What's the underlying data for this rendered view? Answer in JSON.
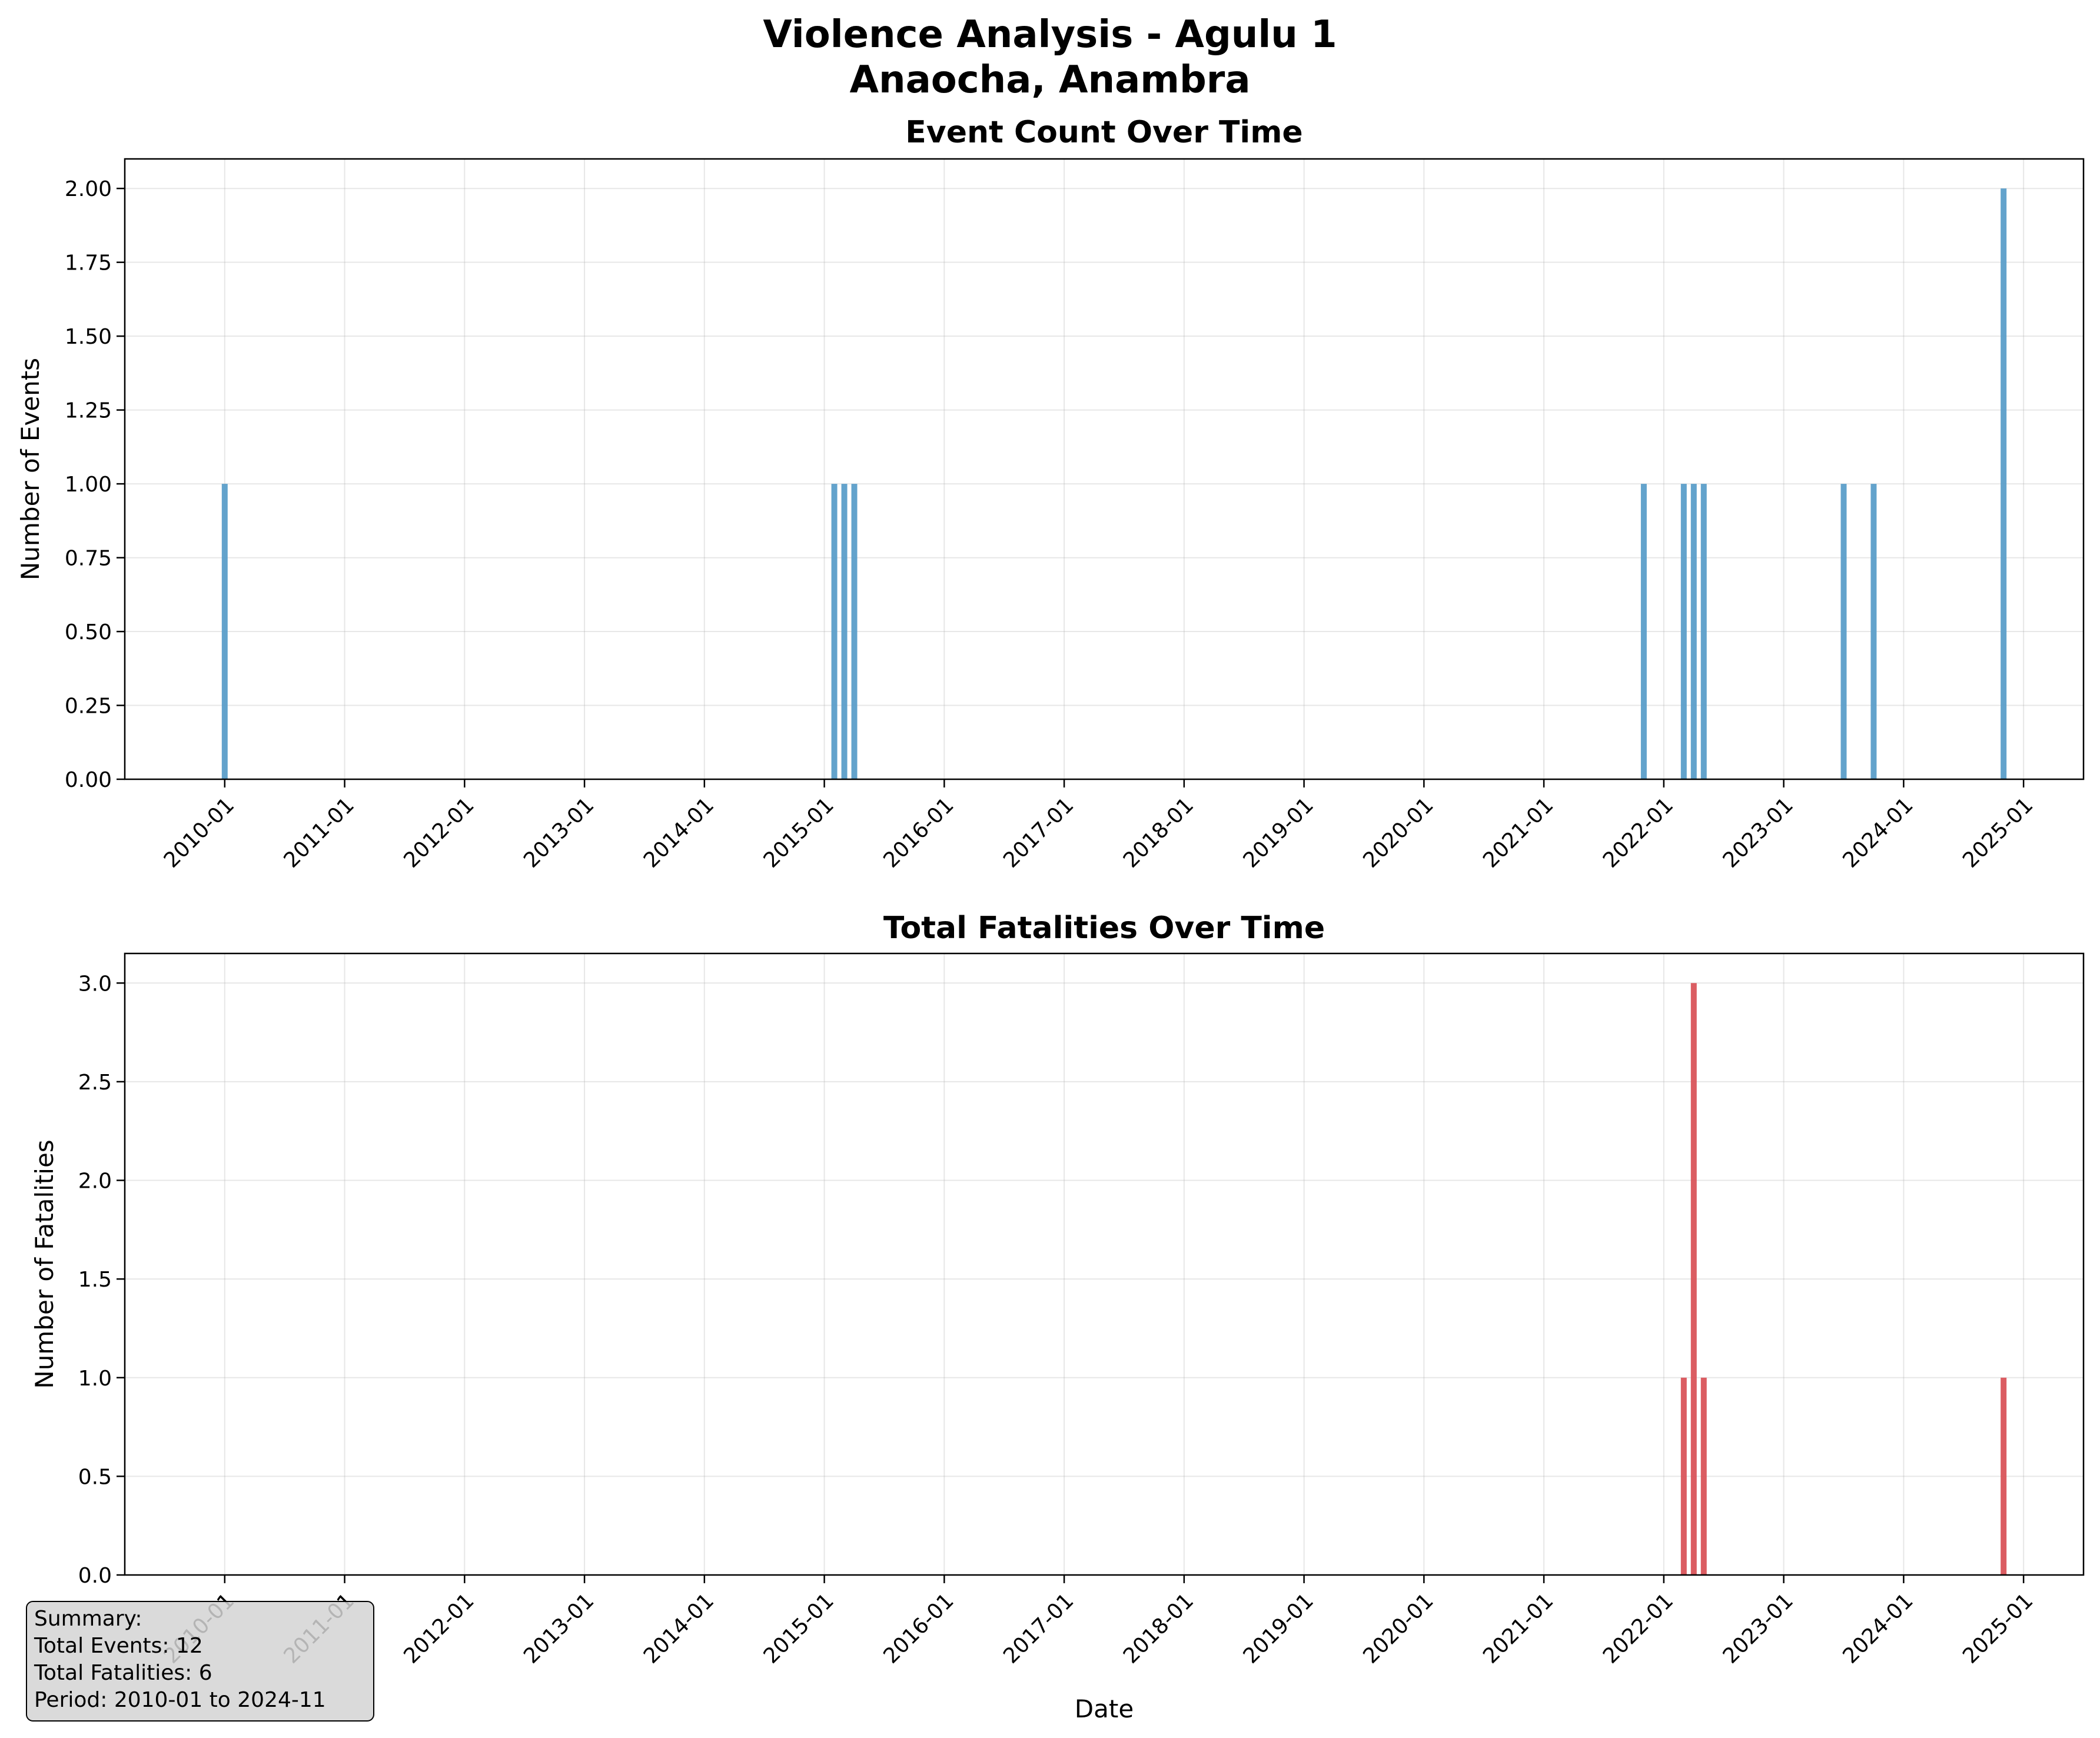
{
  "title_line1": "Violence Analysis - Agulu 1",
  "title_line2": "Anaocha, Anambra",
  "colors": {
    "events": "#5b9ec9",
    "fatalities": "#d9545a"
  },
  "summary": {
    "heading": "Summary:",
    "total_events": "Total Events: 12",
    "total_fatalities": "Total Fatalities: 6",
    "period": "Period: 2010-01 to 2024-11"
  },
  "chart_data": [
    {
      "type": "bar",
      "title": "Event Count Over Time",
      "xlabel": "",
      "ylabel": "Number of Events",
      "ylim": [
        0,
        2.1
      ],
      "xlim": [
        "2009-03",
        "2025-07"
      ],
      "grid": true,
      "x_tick_labels": [
        "2010-01",
        "2011-01",
        "2012-01",
        "2013-01",
        "2014-01",
        "2015-01",
        "2016-01",
        "2017-01",
        "2018-01",
        "2019-01",
        "2020-01",
        "2021-01",
        "2022-01",
        "2023-01",
        "2024-01",
        "2025-01"
      ],
      "y_tick_labels": [
        "0.00",
        "0.25",
        "0.50",
        "0.75",
        "1.00",
        "1.25",
        "1.50",
        "1.75",
        "2.00"
      ],
      "x": [
        "2010-01",
        "2015-02",
        "2015-03",
        "2015-04",
        "2021-11",
        "2022-03",
        "2022-04",
        "2022-05",
        "2023-07",
        "2023-10",
        "2024-11"
      ],
      "values": [
        1,
        1,
        1,
        1,
        1,
        1,
        1,
        1,
        1,
        1,
        2
      ]
    },
    {
      "type": "bar",
      "title": "Total Fatalities Over Time",
      "xlabel": "Date",
      "ylabel": "Number of Fatalities",
      "ylim": [
        0,
        3.15
      ],
      "xlim": [
        "2009-03",
        "2025-07"
      ],
      "grid": true,
      "x_tick_labels": [
        "2010-01",
        "2011-01",
        "2012-01",
        "2013-01",
        "2014-01",
        "2015-01",
        "2016-01",
        "2017-01",
        "2018-01",
        "2019-01",
        "2020-01",
        "2021-01",
        "2022-01",
        "2023-01",
        "2024-01",
        "2025-01"
      ],
      "y_tick_labels": [
        "0.0",
        "0.5",
        "1.0",
        "1.5",
        "2.0",
        "2.5",
        "3.0"
      ],
      "x": [
        "2022-03",
        "2022-04",
        "2022-05",
        "2024-11"
      ],
      "values": [
        1,
        3,
        1,
        1
      ]
    }
  ]
}
